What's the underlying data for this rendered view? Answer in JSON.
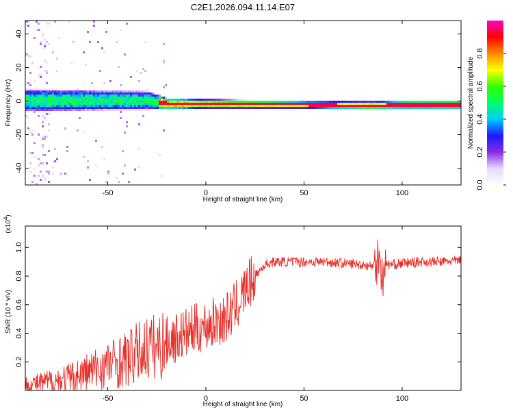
{
  "figure_title": "C2E1.2026.094.11.14.E07",
  "chart_data": [
    {
      "type": "heatmap",
      "title": "",
      "xlabel": "Height of straight line (km)",
      "ylabel": "Frequency (Hz)",
      "xlim": [
        -92,
        130
      ],
      "ylim": [
        -50,
        48
      ],
      "xticks": [
        -50,
        0,
        50,
        100
      ],
      "xtick_labels": [
        "-50",
        "0",
        "50",
        "100"
      ],
      "yticks": [
        -40,
        -20,
        0,
        20,
        40
      ],
      "ytick_labels": [
        "-40",
        "-20",
        "0",
        "20",
        "40"
      ],
      "colorbar": {
        "label": "Normalized spectral amplitude",
        "range": [
          0,
          1
        ],
        "ticks": [
          0.0,
          0.2,
          0.4,
          0.6,
          0.8
        ],
        "tick_labels": [
          "0.0",
          "0.2",
          "0.4",
          "0.6",
          "0.8"
        ],
        "colors": [
          "#ffffff",
          "#e6d9ff",
          "#8a2be2",
          "#1a1aff",
          "#00ccff",
          "#00ff66",
          "#33ff00",
          "#ffff00",
          "#ff8800",
          "#ff0000",
          "#ff00cc"
        ]
      },
      "description_values": {
        "band_center_hz": [
          [
            -92,
            1
          ],
          [
            -30,
            1
          ],
          [
            -20,
            -1
          ],
          [
            0,
            -1
          ],
          [
            50,
            -1.5
          ],
          [
            85,
            -2
          ],
          [
            100,
            -1.5
          ],
          [
            130,
            -1.5
          ]
        ],
        "band_halfwidth_hz": [
          [
            -92,
            6
          ],
          [
            -30,
            5
          ],
          [
            -20,
            3
          ],
          [
            0,
            2.5
          ],
          [
            50,
            2
          ],
          [
            130,
            2.5
          ]
        ]
      }
    },
    {
      "type": "line",
      "title": "",
      "xlabel": "Height of straight line (km)",
      "ylabel": "SNR (10 * v/v)",
      "ylabel_multiplier": "(x10",
      "ylabel_multiplier_exp": "4",
      "ylabel_multiplier_close": ")",
      "xlim": [
        -92,
        130
      ],
      "ylim": [
        0,
        1.15
      ],
      "xticks": [
        -50,
        0,
        50,
        100
      ],
      "xtick_labels": [
        "-50",
        "0",
        "50",
        "100"
      ],
      "yticks": [
        0.2,
        0.4,
        0.6,
        0.8,
        1.0
      ],
      "ytick_labels": [
        "0.2",
        "0.4",
        "0.6",
        "0.8",
        "1.0"
      ],
      "series": [
        {
          "name": "SNR",
          "color": "#e8302a",
          "x": [
            -92,
            -85,
            -80,
            -75,
            -70,
            -65,
            -60,
            -55,
            -50,
            -45,
            -40,
            -35,
            -30,
            -25,
            -20,
            -15,
            -10,
            -5,
            0,
            5,
            10,
            15,
            20,
            25,
            30,
            35,
            40,
            50,
            60,
            70,
            80,
            85,
            88,
            90,
            92,
            95,
            100,
            110,
            120,
            130
          ],
          "y": [
            0.04,
            0.05,
            0.06,
            0.07,
            0.08,
            0.1,
            0.13,
            0.15,
            0.18,
            0.2,
            0.22,
            0.26,
            0.3,
            0.3,
            0.34,
            0.37,
            0.4,
            0.43,
            0.45,
            0.48,
            0.5,
            0.58,
            0.7,
            0.8,
            0.88,
            0.9,
            0.9,
            0.9,
            0.9,
            0.89,
            0.88,
            0.87,
            0.95,
            0.78,
            0.88,
            0.88,
            0.89,
            0.9,
            0.9,
            0.91
          ]
        }
      ]
    }
  ]
}
